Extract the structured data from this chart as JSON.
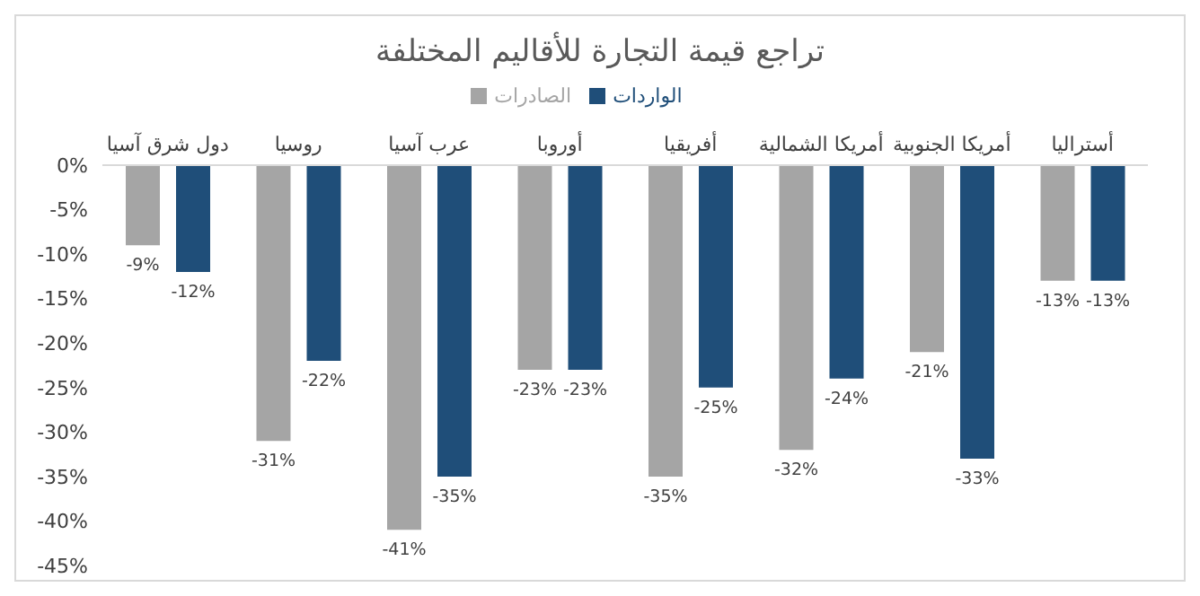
{
  "chart_data": {
    "type": "bar",
    "title": "تراجع قيمة التجارة للأقاليم المختلفة",
    "categories": [
      "دول شرق آسيا",
      "روسيا",
      "عرب آسيا",
      "أوروبا",
      "أفريقيا",
      "أمريكا الشمالية",
      "أمريكا الجنوبية",
      "أستراليا"
    ],
    "series": [
      {
        "name": "الصادرات",
        "color": "#a5a5a5",
        "values": [
          -9,
          -31,
          -41,
          -23,
          -35,
          -32,
          -21,
          -13
        ],
        "value_labels": [
          "-9%",
          "-31%",
          "-41%",
          "-23%",
          "-35%",
          "-32%",
          "-21%",
          "-13%"
        ]
      },
      {
        "name": "الواردات",
        "color": "#1f4e79",
        "values": [
          -12,
          -22,
          -35,
          -23,
          -25,
          -24,
          -33,
          -13
        ],
        "value_labels": [
          "-12%",
          "-22%",
          "-35%",
          "-23%",
          "-25%",
          "-24%",
          "-33%",
          "-13%"
        ]
      }
    ],
    "ylim": [
      -45,
      0
    ],
    "yticks": [
      {
        "value": 0,
        "label": "0%"
      },
      {
        "value": -5,
        "label": "-5%"
      },
      {
        "value": -10,
        "label": "-10%"
      },
      {
        "value": -15,
        "label": "-15%"
      },
      {
        "value": -20,
        "label": "-20%"
      },
      {
        "value": -25,
        "label": "-25%"
      },
      {
        "value": -30,
        "label": "-30%"
      },
      {
        "value": -35,
        "label": "-35%"
      },
      {
        "value": -40,
        "label": "-40%"
      },
      {
        "value": -45,
        "label": "-45%"
      }
    ],
    "grid": false,
    "legend": "top"
  }
}
